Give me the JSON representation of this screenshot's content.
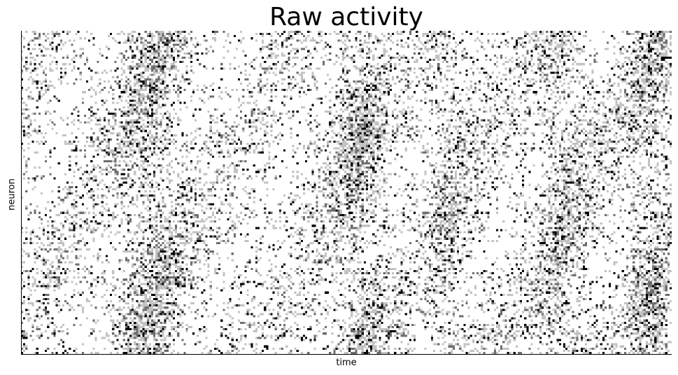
{
  "chart_data": {
    "type": "heatmap",
    "title": "Raw activity",
    "xlabel": "time",
    "ylabel": "neuron",
    "colormap": "gray_r",
    "grid": false,
    "xticks": false,
    "yticks": false,
    "n_neurons": 150,
    "n_timepoints": 300,
    "value_range": [
      0,
      1
    ],
    "colors": {
      "low": "#ffffff",
      "mid": "#bdbdbd",
      "high": "#000000"
    }
  }
}
